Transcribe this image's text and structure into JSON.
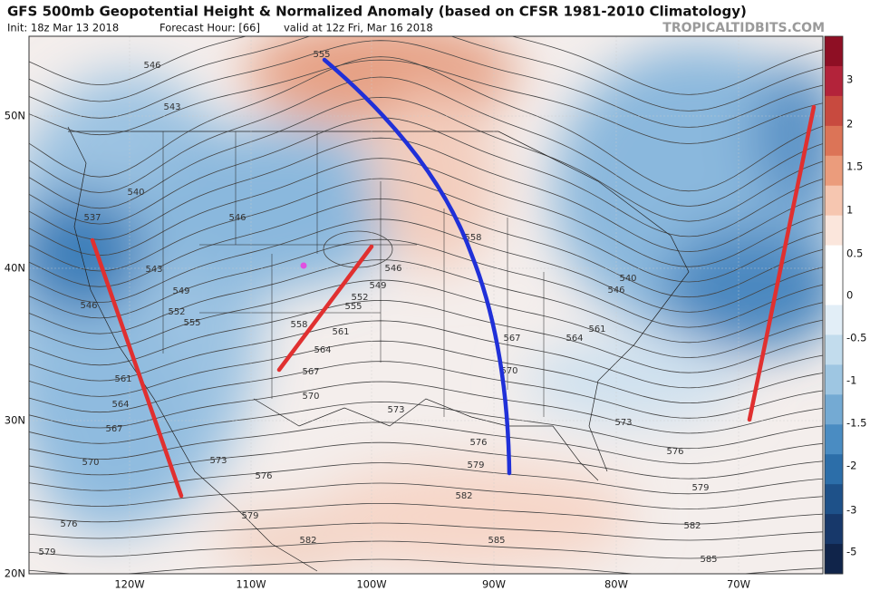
{
  "header": {
    "title": "GFS 500mb Geopotential Height & Normalized Anomaly (based on CFSR 1981-2010 Climatology)",
    "init": "Init: 18z Mar 13 2018",
    "forecast_hour": "Forecast Hour: [66]",
    "valid": "valid at 12z Fri, Mar 16 2018",
    "watermark": "TROPICALTIDBITS.COM"
  },
  "map": {
    "latitude_labels": [
      "50N",
      "40N",
      "30N",
      "20N"
    ],
    "longitude_labels": [
      "120W",
      "110W",
      "100W",
      "90W",
      "80W",
      "70W"
    ],
    "contour_labels": [
      "555",
      "546",
      "543",
      "540",
      "537",
      "543",
      "549",
      "552",
      "555",
      "546",
      "561",
      "564",
      "567",
      "570",
      "576",
      "579",
      "546",
      "546",
      "549",
      "552",
      "555",
      "558",
      "561",
      "564",
      "567",
      "570",
      "573",
      "576",
      "579",
      "582",
      "585",
      "582",
      "579",
      "576",
      "573",
      "558",
      "567",
      "570",
      "564",
      "561",
      "546",
      "540",
      "573",
      "576",
      "579",
      "582",
      "585"
    ]
  },
  "colorbar": {
    "labels": [
      3,
      2,
      1.5,
      1,
      0.5,
      0,
      -0.5,
      -1,
      -1.5,
      -2,
      -3,
      -5
    ]
  }
}
